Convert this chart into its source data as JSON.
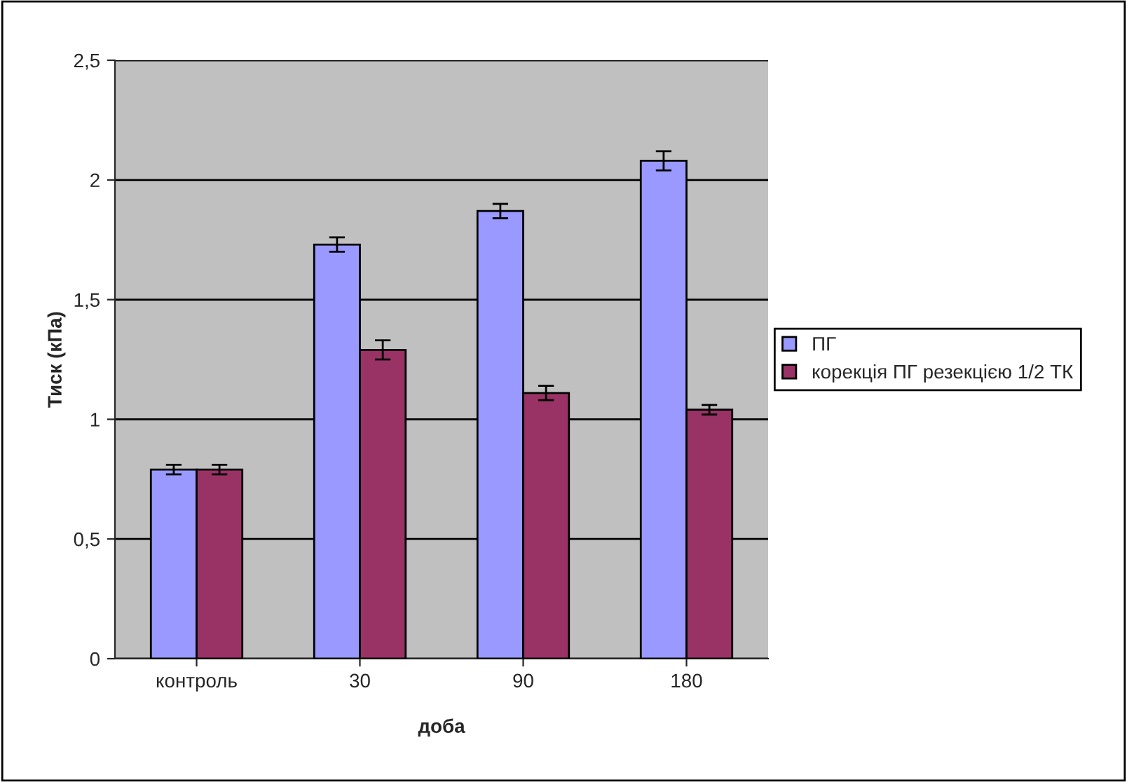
{
  "chart_data": {
    "type": "bar",
    "xlabel": "доба",
    "ylabel": "Тиск (кПа)",
    "categories": [
      "контроль",
      "30",
      "90",
      "180"
    ],
    "series": [
      {
        "name": "ПГ",
        "color": "#9999ff",
        "values": [
          0.79,
          1.73,
          1.87,
          2.08
        ],
        "errors": [
          0.02,
          0.03,
          0.03,
          0.04
        ]
      },
      {
        "name": "корекція ПГ резекцією 1/2 ТК",
        "color": "#993366",
        "values": [
          0.79,
          1.29,
          1.11,
          1.04
        ],
        "errors": [
          0.02,
          0.04,
          0.03,
          0.02
        ]
      }
    ],
    "ylim": [
      0,
      2.5
    ],
    "yticks": [
      0,
      {
        "value": 0.5,
        "label": "0,5"
      },
      1,
      {
        "value": 1.5,
        "label": "1,5"
      },
      2,
      {
        "value": 2.5,
        "label": "2,5"
      }
    ],
    "grid": "y",
    "legend": "right"
  }
}
